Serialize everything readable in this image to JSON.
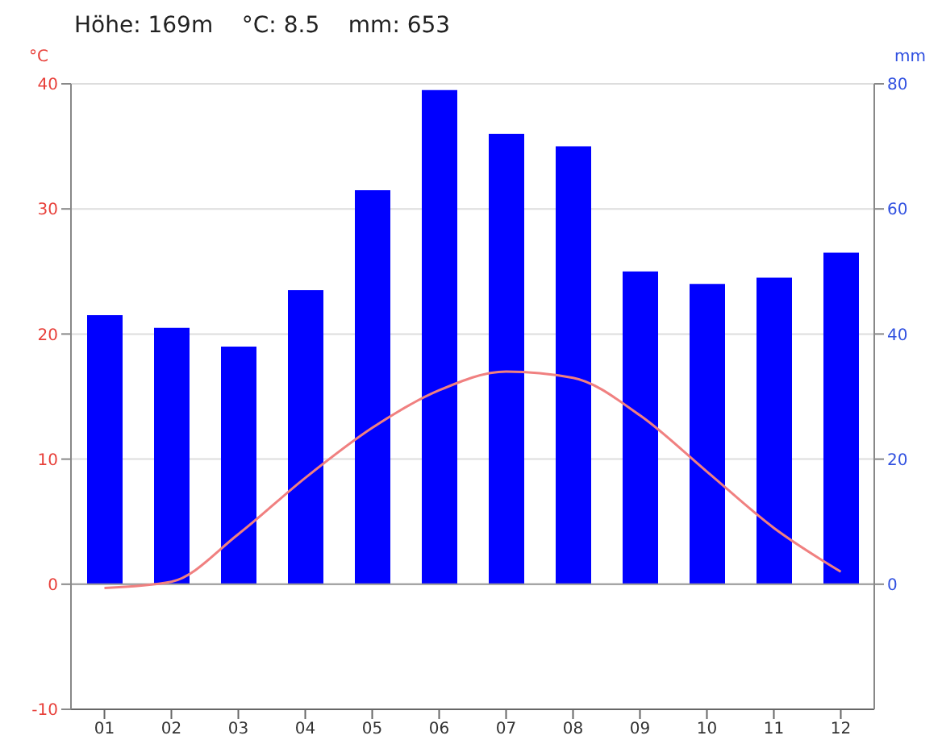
{
  "chart_data": {
    "type": "bar",
    "title": "Höhe: 169m    °C: 8.5    mm: 653",
    "ylabel": "°C",
    "y2label": "mm",
    "categories": [
      "01",
      "02",
      "03",
      "04",
      "05",
      "06",
      "07",
      "08",
      "09",
      "10",
      "11",
      "12"
    ],
    "series": [
      {
        "axis": "y2",
        "color": "#0000ff",
        "values": [
          43,
          41,
          38,
          47,
          63,
          79,
          72,
          70,
          50,
          48,
          49,
          53
        ]
      },
      {
        "type": "line",
        "axis": "y",
        "color": "#f08080",
        "values": [
          -0.3,
          0.2,
          4,
          8.5,
          12.5,
          15.5,
          17,
          16.5,
          13.5,
          9,
          4.5,
          1
        ]
      }
    ],
    "ylim": [
      -10,
      40
    ],
    "yticks": [
      -10,
      0,
      10,
      20,
      30,
      40
    ],
    "y2lim": [
      -20,
      80
    ],
    "y2ticks": [
      0,
      20,
      40,
      60,
      80
    ],
    "grid": "y",
    "marker": "none"
  }
}
